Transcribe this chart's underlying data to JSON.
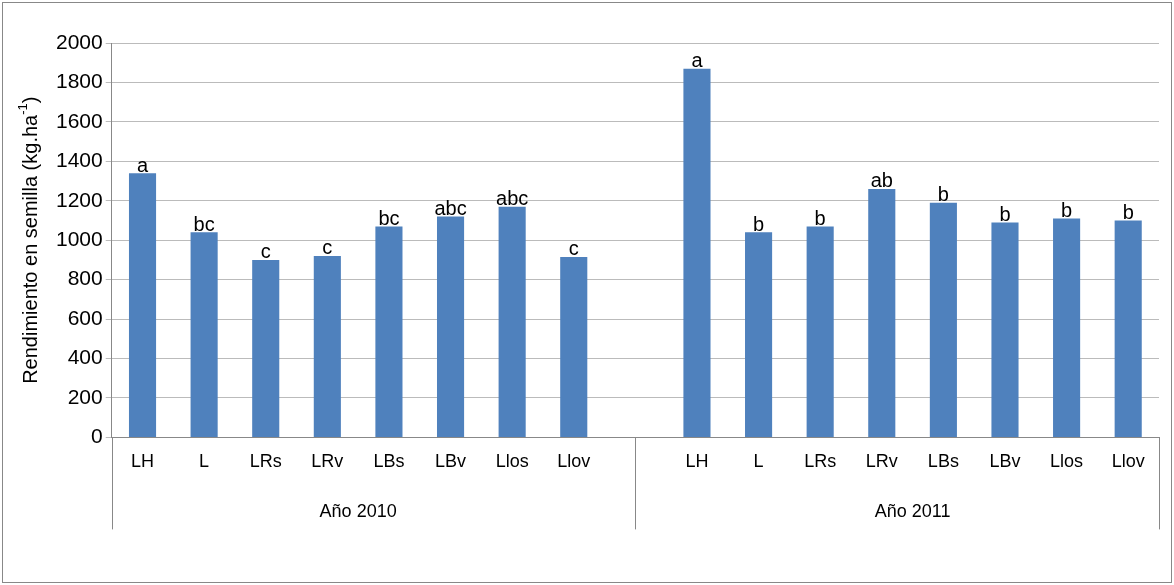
{
  "chart_data": {
    "type": "bar",
    "ylabel": "Rendimiento en semilla (kg.ha$^{-1}$)",
    "categories": [
      "LH",
      "L",
      "LRs",
      "LRv",
      "LBs",
      "LBv",
      "Llos",
      "Llov",
      null,
      "LH",
      "L",
      "LRs",
      "LRv",
      "LBs",
      "LBv",
      "Llos",
      "Llov"
    ],
    "values": [
      1340,
      1040,
      900,
      920,
      1070,
      1120,
      1170,
      915,
      null,
      1870,
      1040,
      1070,
      1260,
      1190,
      1090,
      1110,
      1100
    ],
    "value_labels": [
      "a",
      "bc",
      "c",
      "c",
      "bc",
      "abc",
      "abc",
      "c",
      null,
      "a",
      "b",
      "b",
      "ab",
      "b",
      "b",
      "b",
      "b"
    ],
    "color": "#4f81bd",
    "ylim": [
      0,
      2000
    ],
    "yticks": [
      0,
      200,
      400,
      600,
      800,
      1000,
      1200,
      1400,
      1600,
      1800,
      2000
    ],
    "grid": "y",
    "legend": false,
    "annotations": [
      "Año 2010",
      "Año 2011"
    ]
  }
}
